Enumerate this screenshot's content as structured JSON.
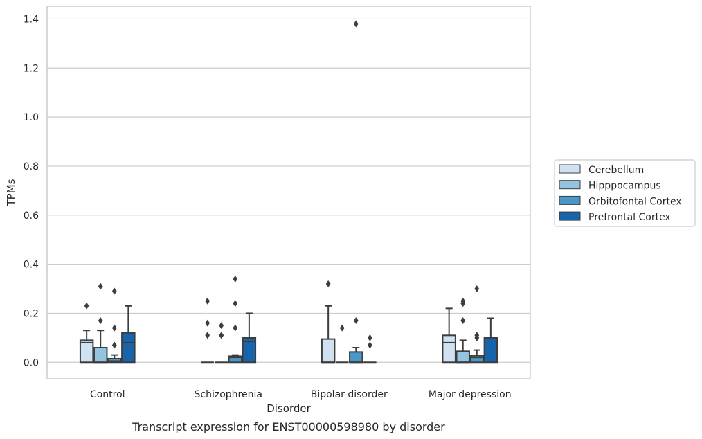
{
  "caption": "Transcript expression for ENST00000598980 by disorder",
  "chart_data": {
    "type": "box",
    "title": "",
    "xlabel": "Disorder",
    "ylabel": "TPMs",
    "ylim": [
      -0.067,
      1.452
    ],
    "yticks": [
      "0.0",
      "0.2",
      "0.4",
      "0.6",
      "0.8",
      "1.0",
      "1.2",
      "1.4"
    ],
    "ytick_values": [
      0.0,
      0.2,
      0.4,
      0.6,
      0.8,
      1.0,
      1.2,
      1.4
    ],
    "grid": true,
    "legend_position": "right",
    "categories": [
      "Control",
      "Schizophrenia",
      "Bipolar disorder",
      "Major depression"
    ],
    "series": [
      {
        "name": "Cerebellum",
        "color": "#d0e1f2",
        "boxes": [
          {
            "q1": 0.0,
            "median": 0.08,
            "q3": 0.09,
            "whisker_low": 0.0,
            "whisker_high": 0.13,
            "outliers": [
              0.23
            ]
          },
          {
            "q1": 0.0,
            "median": 0.0,
            "q3": 0.0,
            "whisker_low": 0.0,
            "whisker_high": 0.0,
            "outliers": [
              0.11,
              0.16,
              0.25
            ]
          },
          {
            "q1": 0.0,
            "median": 0.0,
            "q3": 0.095,
            "whisker_low": 0.0,
            "whisker_high": 0.23,
            "outliers": [
              0.32
            ]
          },
          {
            "q1": 0.0,
            "median": 0.08,
            "q3": 0.11,
            "whisker_low": 0.0,
            "whisker_high": 0.22,
            "outliers": []
          }
        ]
      },
      {
        "name": "Hipppocampus",
        "color": "#94c4df",
        "boxes": [
          {
            "q1": 0.0,
            "median": 0.0,
            "q3": 0.06,
            "whisker_low": 0.0,
            "whisker_high": 0.13,
            "outliers": [
              0.17,
              0.31
            ]
          },
          {
            "q1": 0.0,
            "median": 0.0,
            "q3": 0.0,
            "whisker_low": 0.0,
            "whisker_high": 0.0,
            "outliers": [
              0.11,
              0.11,
              0.15
            ]
          },
          {
            "q1": 0.0,
            "median": 0.0,
            "q3": 0.0,
            "whisker_low": 0.0,
            "whisker_high": 0.0,
            "outliers": [
              0.14
            ]
          },
          {
            "q1": 0.0,
            "median": 0.0,
            "q3": 0.045,
            "whisker_low": 0.0,
            "whisker_high": 0.09,
            "outliers": [
              0.17,
              0.24,
              0.25
            ]
          }
        ]
      },
      {
        "name": "Orbitofontal Cortex",
        "color": "#4a98c9",
        "boxes": [
          {
            "q1": 0.0,
            "median": 0.005,
            "q3": 0.015,
            "whisker_low": 0.0,
            "whisker_high": 0.03,
            "outliers": [
              0.07,
              0.14,
              0.29
            ]
          },
          {
            "q1": 0.0,
            "median": 0.02,
            "q3": 0.025,
            "whisker_low": 0.0,
            "whisker_high": 0.03,
            "outliers": [
              0.14,
              0.24,
              0.34
            ]
          },
          {
            "q1": 0.0,
            "median": 0.0,
            "q3": 0.042,
            "whisker_low": 0.0,
            "whisker_high": 0.06,
            "outliers": [
              0.17,
              1.38
            ]
          },
          {
            "q1": 0.0,
            "median": 0.02,
            "q3": 0.027,
            "whisker_low": 0.0,
            "whisker_high": 0.05,
            "outliers": [
              0.1,
              0.11,
              0.3
            ]
          }
        ]
      },
      {
        "name": "Prefrontal Cortex",
        "color": "#1764ab",
        "boxes": [
          {
            "q1": 0.0,
            "median": 0.08,
            "q3": 0.12,
            "whisker_low": 0.0,
            "whisker_high": 0.23,
            "outliers": []
          },
          {
            "q1": 0.0,
            "median": 0.085,
            "q3": 0.1,
            "whisker_low": 0.0,
            "whisker_high": 0.2,
            "outliers": []
          },
          {
            "q1": 0.0,
            "median": 0.0,
            "q3": 0.0,
            "whisker_low": 0.0,
            "whisker_high": 0.0,
            "outliers": [
              0.07,
              0.1
            ]
          },
          {
            "q1": 0.0,
            "median": 0.1,
            "q3": 0.1,
            "whisker_low": 0.0,
            "whisker_high": 0.18,
            "outliers": []
          }
        ]
      }
    ]
  }
}
